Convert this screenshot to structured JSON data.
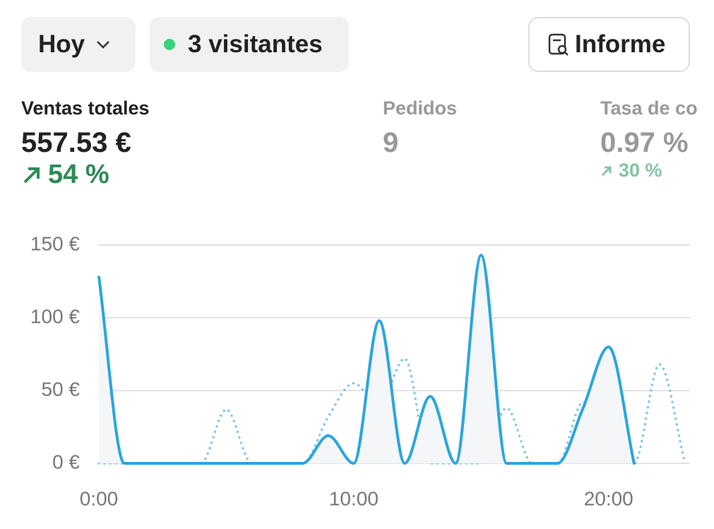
{
  "toolbar": {
    "period": "Hoy",
    "visitors": "3 visitantes",
    "report": "Informe"
  },
  "metrics": [
    {
      "label": "Ventas totales",
      "value": "557.53 €",
      "change": "54 %"
    },
    {
      "label": "Pedidos",
      "value": "9"
    },
    {
      "label": "Tasa de co",
      "value": "0.97 %",
      "change": "30 %"
    }
  ],
  "chart_data": {
    "type": "line",
    "x": [
      0,
      1,
      2,
      3,
      4,
      5,
      6,
      7,
      8,
      9,
      10,
      11,
      12,
      13,
      14,
      15,
      16,
      17,
      18,
      19,
      20,
      21,
      22,
      23
    ],
    "xlim": [
      0,
      23
    ],
    "xticks": [
      {
        "value": 0,
        "label": "0:00"
      },
      {
        "value": 10,
        "label": "10:00"
      },
      {
        "value": 20,
        "label": "20:00"
      }
    ],
    "ylim": [
      0,
      150
    ],
    "yticks": [
      {
        "value": 0,
        "label": "0 €"
      },
      {
        "value": 50,
        "label": "50 €"
      },
      {
        "value": 100,
        "label": "100 €"
      },
      {
        "value": 150,
        "label": "150 €"
      }
    ],
    "grid": true,
    "series": [
      {
        "color": "#2ba6dc",
        "line_style": "solid",
        "area": true,
        "values": [
          128,
          0,
          0,
          0,
          0,
          0,
          0,
          0,
          0,
          19,
          0,
          98,
          0,
          46,
          0,
          143,
          0,
          0,
          0,
          38,
          80,
          0,
          null,
          null
        ]
      },
      {
        "color": "#84c7e6",
        "line_style": "dotted",
        "area": false,
        "values": [
          0,
          0,
          0,
          0,
          0,
          37,
          0,
          0,
          0,
          32,
          55,
          40,
          72,
          0,
          0,
          0,
          38,
          0,
          0,
          42,
          40,
          0,
          68,
          0
        ]
      }
    ]
  }
}
